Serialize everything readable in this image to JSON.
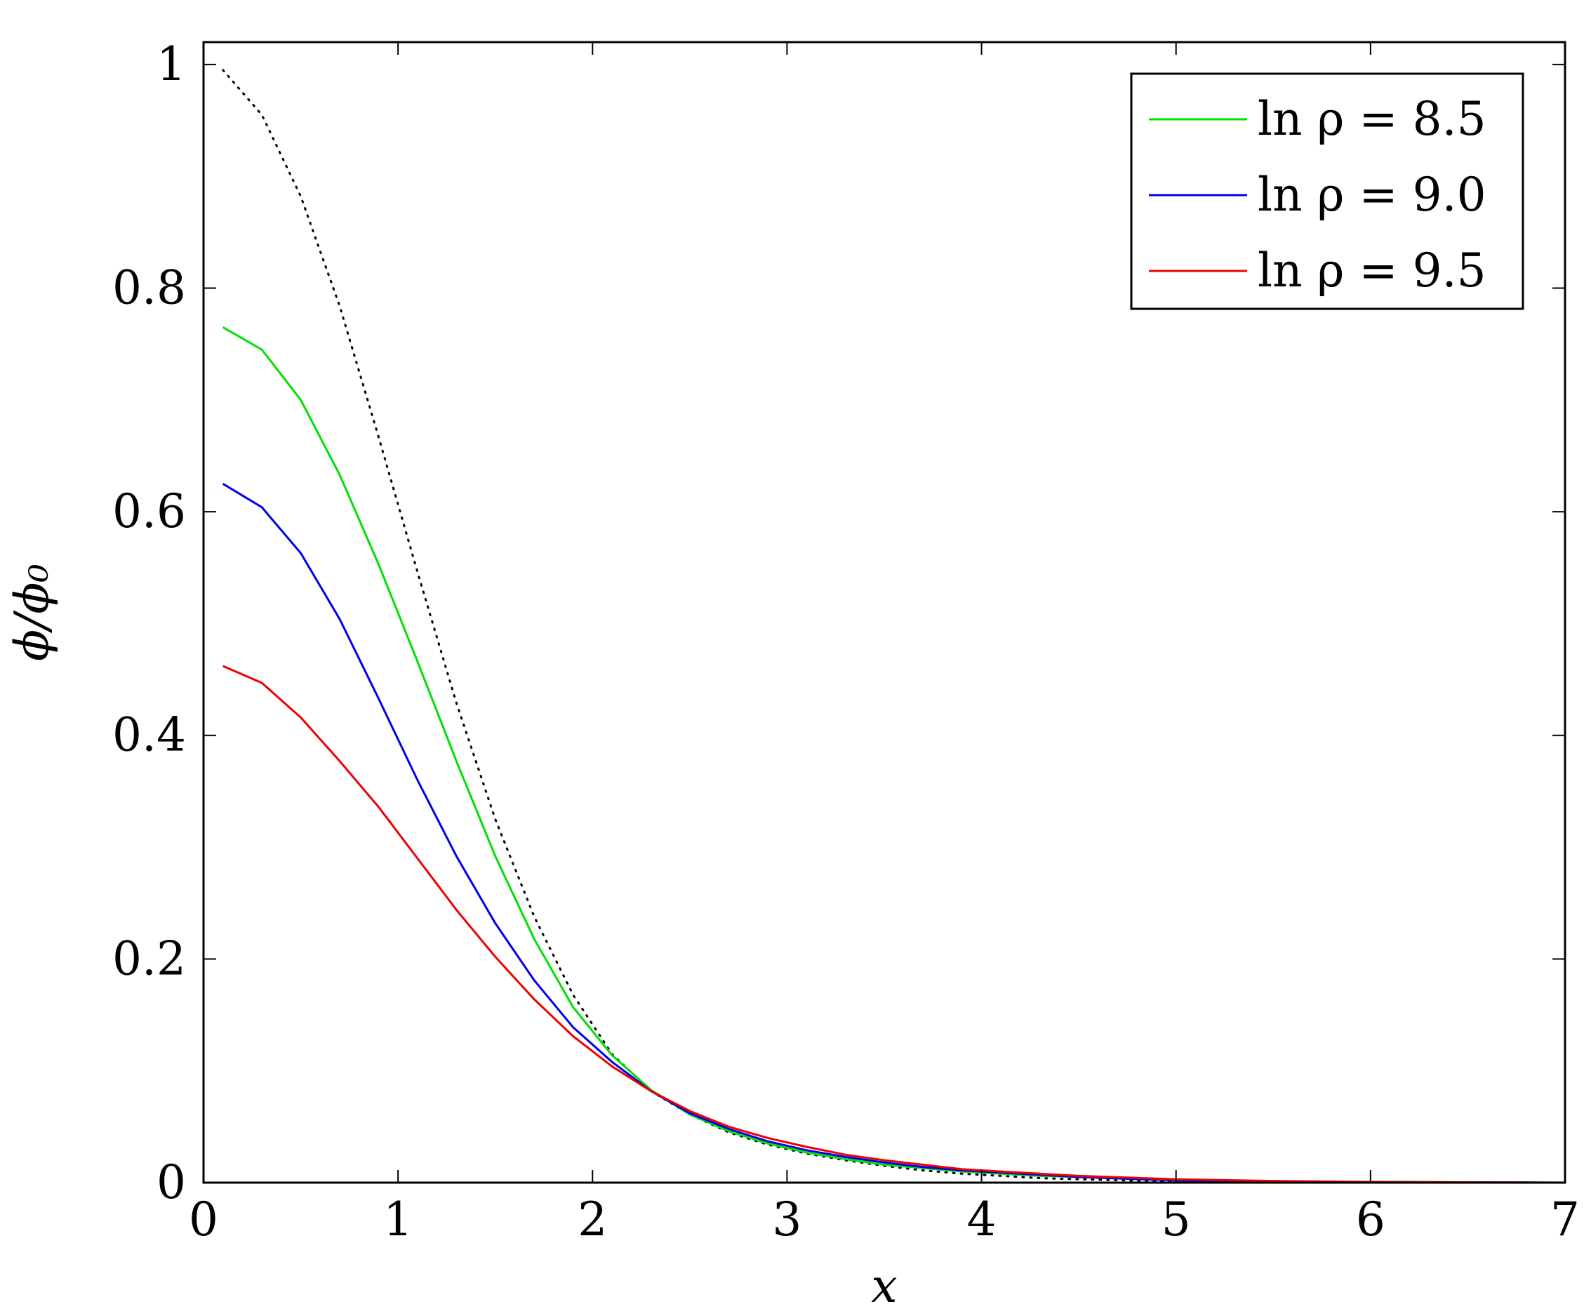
{
  "chart_data": {
    "type": "line",
    "xlabel": "x",
    "ylabel": "ϕ/ϕ₀",
    "xlim": [
      0,
      7
    ],
    "ylim": [
      0,
      1.02
    ],
    "xticks": [
      0,
      1,
      2,
      3,
      4,
      5,
      6,
      7
    ],
    "xtick_labels": [
      "0",
      "1",
      "2",
      "3",
      "4",
      "5",
      "6",
      "7"
    ],
    "yticks": [
      0,
      0.2,
      0.4,
      0.6,
      0.8,
      1
    ],
    "ytick_labels": [
      "0",
      "0.2",
      "0.4",
      "0.6",
      "0.8",
      "1"
    ],
    "grid": false,
    "legend_position": "top-right",
    "reference_curve": {
      "style": "dotted",
      "color": "#000000",
      "x": [
        0.1,
        0.3,
        0.5,
        0.7,
        0.9,
        1.1,
        1.3,
        1.5,
        1.7,
        1.9,
        2.1,
        2.3,
        2.5,
        2.7,
        2.9,
        3.1,
        3.3,
        3.5,
        3.7,
        3.9,
        4.1,
        4.3,
        4.5,
        5.0,
        5.5,
        6.0,
        7.0
      ],
      "y": [
        0.995,
        0.955,
        0.882,
        0.784,
        0.667,
        0.546,
        0.429,
        0.325,
        0.238,
        0.168,
        0.115,
        0.082,
        0.061,
        0.045,
        0.034,
        0.026,
        0.02,
        0.015,
        0.011,
        0.008,
        0.006,
        0.004,
        0.003,
        0.001,
        0.0005,
        0.0002,
        0.0
      ]
    },
    "series": [
      {
        "name": "ln ρ = 8.5",
        "color": "#00e000",
        "x": [
          0.1,
          0.3,
          0.5,
          0.7,
          0.9,
          1.1,
          1.3,
          1.5,
          1.7,
          1.9,
          2.1,
          2.3,
          2.5,
          2.7,
          2.9,
          3.1,
          3.3,
          3.5,
          3.7,
          3.9,
          4.1,
          4.3,
          4.5,
          5.0,
          5.5,
          6.0,
          7.0
        ],
        "y": [
          0.765,
          0.745,
          0.7,
          0.633,
          0.553,
          0.466,
          0.377,
          0.292,
          0.218,
          0.157,
          0.114,
          0.083,
          0.061,
          0.046,
          0.035,
          0.027,
          0.021,
          0.016,
          0.013,
          0.01,
          0.008,
          0.006,
          0.005,
          0.002,
          0.001,
          0.0005,
          0.0
        ]
      },
      {
        "name": "ln ρ = 9.0",
        "color": "#0000ee",
        "x": [
          0.1,
          0.3,
          0.5,
          0.7,
          0.9,
          1.1,
          1.3,
          1.5,
          1.7,
          1.9,
          2.1,
          2.3,
          2.5,
          2.7,
          2.9,
          3.1,
          3.3,
          3.5,
          3.7,
          3.9,
          4.1,
          4.3,
          4.5,
          5.0,
          5.5,
          6.0,
          7.0
        ],
        "y": [
          0.625,
          0.604,
          0.563,
          0.504,
          0.433,
          0.36,
          0.292,
          0.232,
          0.181,
          0.139,
          0.108,
          0.082,
          0.062,
          0.048,
          0.037,
          0.029,
          0.023,
          0.018,
          0.014,
          0.011,
          0.009,
          0.007,
          0.005,
          0.002,
          0.001,
          0.0005,
          0.0
        ]
      },
      {
        "name": "ln ρ = 9.5",
        "color": "#ee0000",
        "x": [
          0.1,
          0.3,
          0.5,
          0.7,
          0.9,
          1.1,
          1.3,
          1.5,
          1.7,
          1.9,
          2.1,
          2.3,
          2.5,
          2.7,
          2.9,
          3.1,
          3.3,
          3.5,
          3.7,
          3.9,
          4.1,
          4.3,
          4.5,
          5.0,
          5.5,
          6.0,
          7.0
        ],
        "y": [
          0.462,
          0.447,
          0.416,
          0.377,
          0.336,
          0.29,
          0.244,
          0.202,
          0.164,
          0.131,
          0.104,
          0.082,
          0.064,
          0.05,
          0.04,
          0.032,
          0.025,
          0.02,
          0.016,
          0.012,
          0.01,
          0.008,
          0.006,
          0.003,
          0.0015,
          0.0007,
          0.0
        ]
      }
    ]
  }
}
